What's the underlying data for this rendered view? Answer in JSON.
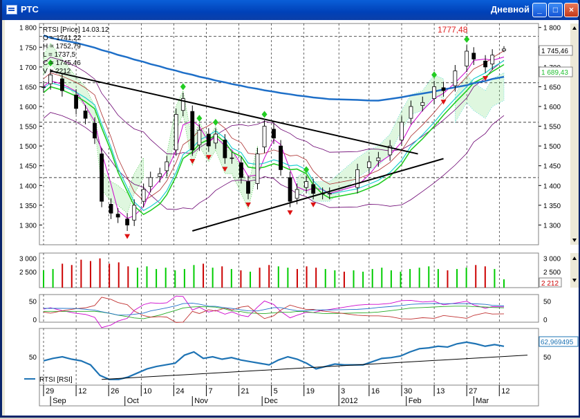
{
  "window": {
    "title": "РТС",
    "period": "Дневной",
    "minimize_label": "_",
    "maximize_label": "□",
    "close_label": "×"
  },
  "info": {
    "name": "RTSI [Price] 14.03.12",
    "open": "O = 1741,22",
    "high": "H = 1752,79",
    "low": "L = 1737,5",
    "close": "C = 1745,46",
    "volume": "V = 2212"
  },
  "annotation": "1777,48",
  "price_axis": [
    "1 800",
    "1 750",
    "1 700",
    "1 650",
    "1 600",
    "1 550",
    "1 500",
    "1 450",
    "1 400",
    "1 350",
    "1 300"
  ],
  "price_tag_last": "1 745,46",
  "price_tag_ma": "1 689,43",
  "volume_axis": [
    "3 000",
    "2 500"
  ],
  "volume_tag": "2 212",
  "osc_axis": [
    "50",
    "0"
  ],
  "rsi_axis": [
    "50"
  ],
  "rsi_tag": "62,969495",
  "rsi_legend": "RTSI [RSI]",
  "date_days": [
    "29",
    "12",
    "26",
    "10",
    "24",
    "7",
    "21",
    "5",
    "19",
    "3",
    "16",
    "30",
    "13",
    "27",
    "12"
  ],
  "date_months": [
    "Sep",
    "Oct",
    "Nov",
    "Dec",
    "2012",
    "Feb",
    "Mar"
  ],
  "colors": {
    "up": "#00cc00",
    "down": "#cc0000",
    "ma_blue": "#1e6fc8",
    "rsi": "#1e73b4",
    "signal_up": "#22cc22",
    "signal_down": "#dd1111"
  },
  "chart_data": {
    "type": "candlestick",
    "title": "RTSI [Price] 14.03.12",
    "x_range": [
      "2011-08-29",
      "2012-03-14"
    ],
    "ylim": [
      1250,
      1810
    ],
    "close_series": [
      {
        "date": "2011-08-29",
        "close": 1650
      },
      {
        "date": "2011-09-01",
        "close": 1680
      },
      {
        "date": "2011-09-06",
        "close": 1640
      },
      {
        "date": "2011-09-12",
        "close": 1595
      },
      {
        "date": "2011-09-16",
        "close": 1570
      },
      {
        "date": "2011-09-20",
        "close": 1520
      },
      {
        "date": "2011-09-23",
        "close": 1360
      },
      {
        "date": "2011-09-27",
        "close": 1330
      },
      {
        "date": "2011-09-30",
        "close": 1320
      },
      {
        "date": "2011-10-04",
        "close": 1300
      },
      {
        "date": "2011-10-07",
        "close": 1350
      },
      {
        "date": "2011-10-11",
        "close": 1390
      },
      {
        "date": "2011-10-14",
        "close": 1420
      },
      {
        "date": "2011-10-18",
        "close": 1430
      },
      {
        "date": "2011-10-21",
        "close": 1460
      },
      {
        "date": "2011-10-25",
        "close": 1580
      },
      {
        "date": "2011-10-28",
        "close": 1620
      },
      {
        "date": "2011-11-01",
        "close": 1490
      },
      {
        "date": "2011-11-04",
        "close": 1540
      },
      {
        "date": "2011-11-08",
        "close": 1500
      },
      {
        "date": "2011-11-11",
        "close": 1530
      },
      {
        "date": "2011-11-15",
        "close": 1470
      },
      {
        "date": "2011-11-18",
        "close": 1470
      },
      {
        "date": "2011-11-22",
        "close": 1420
      },
      {
        "date": "2011-11-25",
        "close": 1380
      },
      {
        "date": "2011-11-29",
        "close": 1480
      },
      {
        "date": "2011-12-02",
        "close": 1550
      },
      {
        "date": "2011-12-06",
        "close": 1520
      },
      {
        "date": "2011-12-09",
        "close": 1440
      },
      {
        "date": "2011-12-13",
        "close": 1360
      },
      {
        "date": "2011-12-16",
        "close": 1390
      },
      {
        "date": "2011-12-20",
        "close": 1410
      },
      {
        "date": "2011-12-23",
        "close": 1380
      },
      {
        "date": "2011-12-27",
        "close": 1380
      },
      {
        "date": "2011-12-30",
        "close": 1380
      },
      {
        "date": "2012-01-11",
        "close": 1440
      },
      {
        "date": "2012-01-16",
        "close": 1460
      },
      {
        "date": "2012-01-20",
        "close": 1470
      },
      {
        "date": "2012-01-25",
        "close": 1500
      },
      {
        "date": "2012-01-30",
        "close": 1560
      },
      {
        "date": "2012-02-03",
        "close": 1600
      },
      {
        "date": "2012-02-08",
        "close": 1610
      },
      {
        "date": "2012-02-13",
        "close": 1650
      },
      {
        "date": "2012-02-17",
        "close": 1640
      },
      {
        "date": "2012-02-22",
        "close": 1690
      },
      {
        "date": "2012-02-27",
        "close": 1740
      },
      {
        "date": "2012-03-01",
        "close": 1720
      },
      {
        "date": "2012-03-06",
        "close": 1700
      },
      {
        "date": "2012-03-09",
        "close": 1730
      },
      {
        "date": "2012-03-14",
        "close": 1745.46
      }
    ],
    "last_bar": {
      "open": 1741.22,
      "high": 1752.79,
      "low": 1737.5,
      "close": 1745.46,
      "volume": 2212
    },
    "annotations": [
      {
        "label": "1777,48",
        "value": 1777.48
      }
    ],
    "trendlines": [
      {
        "from": {
          "date": "2011-09-01",
          "value": 1690
        },
        "to": {
          "date": "2012-02-06",
          "value": 1480
        }
      },
      {
        "from": {
          "date": "2011-11-01",
          "value": 1285
        },
        "to": {
          "date": "2012-02-17",
          "value": 1468
        }
      }
    ],
    "volume_series": [
      2550,
      2600,
      2800,
      2750,
      2950,
      2900,
      3000,
      2800,
      2850,
      2700,
      2650,
      2700,
      2600,
      2650,
      2550,
      2600,
      2750,
      2800,
      2650,
      2700,
      2600,
      2550,
      2500,
      2650,
      2750,
      2700,
      2650,
      2600,
      2700,
      2650,
      2600,
      2550,
      2500,
      2550,
      2500,
      2600,
      2650,
      2550,
      2500,
      2600,
      2650,
      2700,
      2600,
      2550,
      2600,
      2650,
      2750,
      2700,
      2600,
      2212
    ],
    "rsi_ylim": [
      15,
      85
    ],
    "rsi_series": [
      45,
      48,
      50,
      47,
      45,
      40,
      27,
      22,
      22,
      25,
      30,
      35,
      38,
      40,
      42,
      52,
      56,
      48,
      50,
      47,
      49,
      46,
      44,
      42,
      40,
      46,
      50,
      47,
      42,
      35,
      38,
      41,
      40,
      40,
      40,
      44,
      48,
      49,
      51,
      56,
      60,
      61,
      63,
      62,
      66,
      68,
      66,
      63,
      65,
      62.969495
    ]
  }
}
